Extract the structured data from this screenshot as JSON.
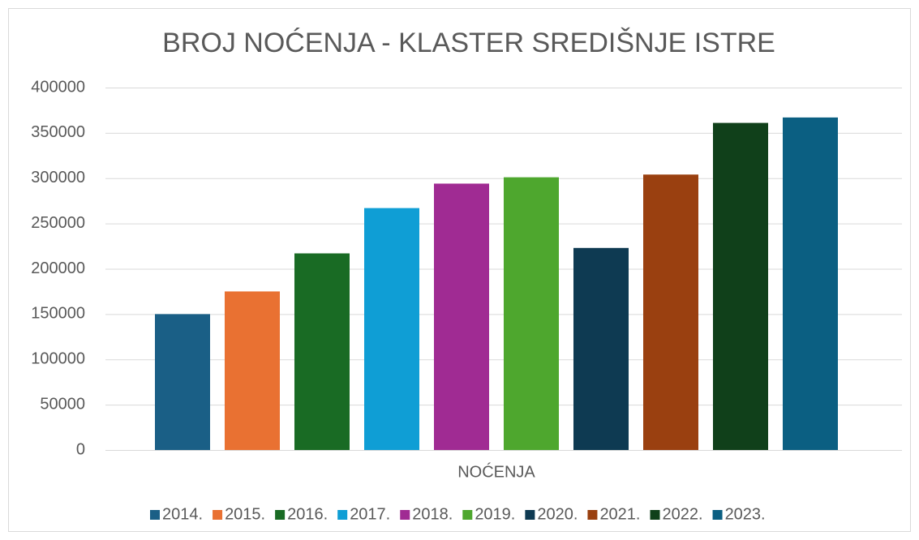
{
  "chart_data": {
    "type": "bar",
    "title": "BROJ NOĆENJA - KLASTER SREDIŠNJE ISTRE",
    "categories": [
      "NOĆENJA"
    ],
    "series": [
      {
        "name": "2014.",
        "color": "#1a5f86",
        "values": [
          150000
        ]
      },
      {
        "name": "2015.",
        "color": "#e97132",
        "values": [
          175000
        ]
      },
      {
        "name": "2016.",
        "color": "#196b24",
        "values": [
          217000
        ]
      },
      {
        "name": "2017.",
        "color": "#0f9ed5",
        "values": [
          267000
        ]
      },
      {
        "name": "2018.",
        "color": "#a02b93",
        "values": [
          294000
        ]
      },
      {
        "name": "2019.",
        "color": "#4ea72e",
        "values": [
          301000
        ]
      },
      {
        "name": "2020.",
        "color": "#0e3a52",
        "values": [
          223000
        ]
      },
      {
        "name": "2021.",
        "color": "#9a4010",
        "values": [
          304000
        ]
      },
      {
        "name": "2022.",
        "color": "#10401a",
        "values": [
          361000
        ]
      },
      {
        "name": "2023.",
        "color": "#0b5f82",
        "values": [
          367000
        ]
      }
    ],
    "ylim": [
      0,
      400000
    ],
    "yticks": [
      0,
      50000,
      100000,
      150000,
      200000,
      250000,
      300000,
      350000,
      400000
    ],
    "grid": true,
    "legend": "bottom"
  }
}
